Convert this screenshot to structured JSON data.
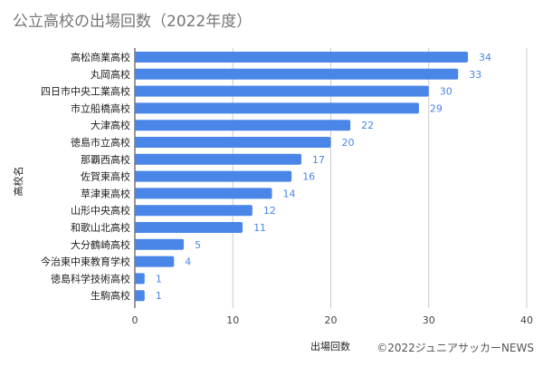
{
  "chart_data": {
    "type": "bar",
    "orientation": "horizontal",
    "title": "公立高校の出場回数（2022年度）",
    "xlabel": "出場回数",
    "ylabel": "高校名",
    "xlim": [
      0,
      40
    ],
    "xticks": [
      0,
      10,
      20,
      30,
      40
    ],
    "grid": true,
    "bar_color": "#4a86e8",
    "label_color": "#4a86e8",
    "categories": [
      "高松商業高校",
      "丸岡高校",
      "四日市中央工業高校",
      "市立船橋高校",
      "大津高校",
      "徳島市立高校",
      "那覇西高校",
      "佐賀東高校",
      "草津東高校",
      "山形中央高校",
      "和歌山北高校",
      "大分鶴崎高校",
      "今治東中東教育学校",
      "徳島科学技術高校",
      "生駒高校"
    ],
    "values": [
      34,
      33,
      30,
      29,
      22,
      20,
      17,
      16,
      14,
      12,
      11,
      5,
      4,
      1,
      1
    ]
  },
  "credit": "©2022ジュニアサッカーNEWS"
}
